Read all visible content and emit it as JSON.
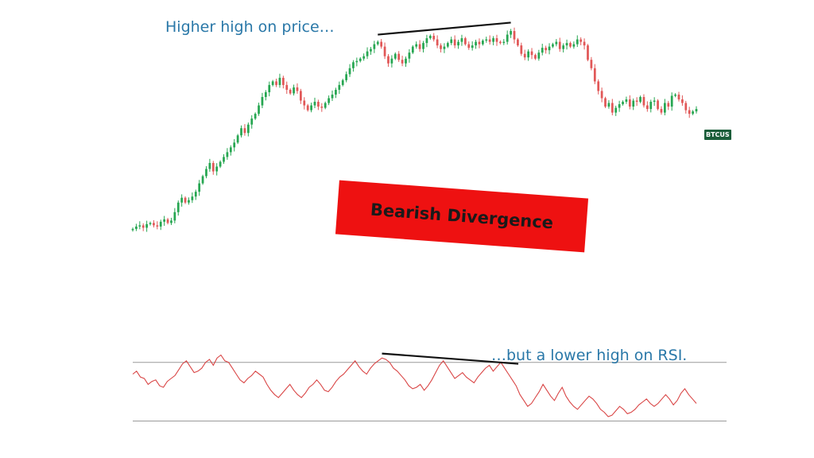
{
  "colors": {
    "up": "#26a651",
    "down": "#e15757",
    "rsi_line": "#d94545",
    "reference_line": "#9a9a9a",
    "trend_line": "#111111",
    "annotation_text": "#2a78a8",
    "banner": "#ee1111",
    "ticker_badge": "#1b5e3a"
  },
  "annotations": {
    "price_note": "Higher high on price…",
    "rsi_note": "…but a lower high on RSI.",
    "banner": "Bearish Divergence",
    "ticker_badge": "BTCUS"
  },
  "chart_data": [
    {
      "type": "line",
      "description_type": "candlestick",
      "series": [
        {
          "name": "BTCUS",
          "close": [
            278,
            280,
            281,
            279,
            282,
            283,
            281,
            280,
            284,
            286,
            283,
            285,
            292,
            300,
            304,
            300,
            302,
            305,
            309,
            316,
            322,
            328,
            333,
            326,
            330,
            334,
            338,
            342,
            346,
            350,
            356,
            362,
            358,
            365,
            370,
            374,
            381,
            388,
            392,
            398,
            401,
            398,
            404,
            398,
            394,
            391,
            396,
            393,
            385,
            381,
            377,
            381,
            384,
            380,
            379,
            383,
            387,
            390,
            394,
            398,
            402,
            407,
            412,
            417,
            418,
            420,
            422,
            426,
            428,
            432,
            434,
            430,
            422,
            416,
            420,
            424,
            419,
            416,
            420,
            425,
            430,
            432,
            428,
            433,
            437,
            439,
            436,
            431,
            428,
            430,
            433,
            436,
            431,
            434,
            437,
            432,
            429,
            431,
            434,
            432,
            435,
            436,
            434,
            437,
            434,
            433,
            434,
            440,
            443,
            436,
            431,
            424,
            421,
            426,
            423,
            420,
            425,
            429,
            427,
            430,
            432,
            434,
            428,
            431,
            433,
            430,
            432,
            436,
            434,
            431,
            419,
            412,
            401,
            393,
            387,
            380,
            383,
            375,
            379,
            382,
            384,
            386,
            380,
            385,
            384,
            388,
            381,
            378,
            384,
            385,
            378,
            375,
            383,
            380,
            389,
            390,
            386,
            383,
            377,
            374,
            376,
            378
          ]
        }
      ]
    },
    {
      "type": "line",
      "series": [
        {
          "name": "RSI",
          "values": [
            62,
            64,
            60,
            59,
            55,
            57,
            58,
            54,
            53,
            57,
            59,
            61,
            65,
            69,
            71,
            67,
            63,
            64,
            66,
            70,
            72,
            68,
            73,
            75,
            71,
            70,
            66,
            62,
            58,
            56,
            59,
            61,
            64,
            62,
            60,
            55,
            51,
            48,
            46,
            49,
            52,
            55,
            51,
            48,
            46,
            49,
            53,
            55,
            58,
            55,
            51,
            50,
            53,
            57,
            60,
            62,
            65,
            68,
            71,
            67,
            64,
            62,
            66,
            69,
            71,
            73,
            72,
            70,
            66,
            64,
            61,
            58,
            54,
            52,
            53,
            55,
            51,
            54,
            58,
            63,
            68,
            71,
            67,
            63,
            59,
            61,
            63,
            60,
            58,
            56,
            60,
            63,
            66,
            68,
            64,
            67,
            70,
            66,
            62,
            58,
            54,
            48,
            44,
            40,
            42,
            46,
            50,
            55,
            51,
            47,
            44,
            49,
            53,
            47,
            43,
            40,
            38,
            41,
            44,
            47,
            45,
            42,
            38,
            36,
            33,
            34,
            37,
            40,
            38,
            35,
            36,
            38,
            41,
            43,
            45,
            42,
            40,
            42,
            45,
            48,
            45,
            41,
            44,
            49,
            52,
            48,
            45,
            42
          ]
        }
      ],
      "reference_levels": [
        70,
        30
      ]
    }
  ]
}
